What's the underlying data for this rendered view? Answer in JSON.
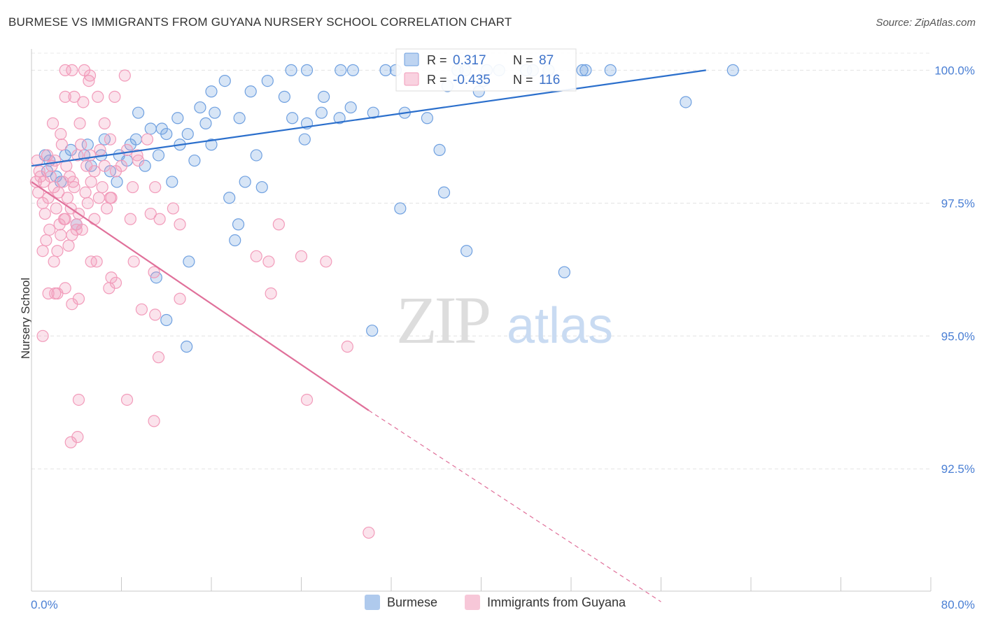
{
  "title": "BURMESE VS IMMIGRANTS FROM GUYANA NURSERY SCHOOL CORRELATION CHART",
  "source": "Source: ZipAtlas.com",
  "watermark": {
    "zip": "ZIP",
    "atlas": "atlas"
  },
  "chart_data": {
    "type": "scatter",
    "title": "BURMESE VS IMMIGRANTS FROM GUYANA NURSERY SCHOOL CORRELATION CHART",
    "xlabel": "",
    "ylabel": "Nursery School",
    "xlim": [
      0,
      80
    ],
    "ylim": [
      90.2,
      100.4
    ],
    "x_tick_labels": [
      "0.0%",
      "80.0%"
    ],
    "y_ticks": [
      92.5,
      95.0,
      97.5,
      100.0
    ],
    "y_tick_labels": [
      "92.5%",
      "95.0%",
      "97.5%",
      "100.0%"
    ],
    "grid": true,
    "legend_position": "top-center",
    "series": [
      {
        "name": "Burmese",
        "color": "#6fa0e0",
        "line_color": "#2b6fcc",
        "R": "0.317",
        "N": "87",
        "trend": {
          "x": [
            0,
            60
          ],
          "y": [
            98.2,
            100.0
          ]
        },
        "points": [
          [
            1.2,
            98.4
          ],
          [
            1.6,
            98.3
          ],
          [
            2.2,
            98.0
          ],
          [
            2.6,
            97.9
          ],
          [
            1.4,
            98.1
          ],
          [
            3.5,
            98.5
          ],
          [
            4.0,
            97.1
          ],
          [
            4.7,
            98.4
          ],
          [
            3.0,
            98.4
          ],
          [
            5.3,
            98.2
          ],
          [
            6.2,
            98.4
          ],
          [
            6.5,
            98.7
          ],
          [
            5.0,
            98.6
          ],
          [
            7.0,
            98.1
          ],
          [
            7.6,
            97.9
          ],
          [
            8.5,
            98.3
          ],
          [
            8.8,
            98.6
          ],
          [
            9.3,
            98.7
          ],
          [
            10.1,
            98.2
          ],
          [
            10.6,
            98.9
          ],
          [
            11.3,
            98.4
          ],
          [
            12.0,
            98.8
          ],
          [
            7.8,
            98.4
          ],
          [
            9.5,
            99.2
          ],
          [
            11.6,
            98.9
          ],
          [
            13.0,
            99.1
          ],
          [
            13.2,
            98.6
          ],
          [
            14.5,
            98.3
          ],
          [
            15.0,
            99.3
          ],
          [
            15.5,
            99.0
          ],
          [
            16.3,
            99.2
          ],
          [
            12.5,
            97.9
          ],
          [
            13.9,
            98.8
          ],
          [
            17.2,
            99.8
          ],
          [
            18.5,
            99.1
          ],
          [
            19.5,
            99.6
          ],
          [
            21.0,
            99.8
          ],
          [
            22.5,
            99.5
          ],
          [
            23.2,
            99.1
          ],
          [
            24.5,
            99.0
          ],
          [
            25.8,
            99.2
          ],
          [
            27.4,
            99.1
          ],
          [
            28.4,
            99.3
          ],
          [
            16.0,
            99.6
          ],
          [
            19.0,
            97.9
          ],
          [
            20.0,
            98.4
          ],
          [
            20.5,
            97.8
          ],
          [
            17.6,
            97.6
          ],
          [
            24.3,
            98.7
          ],
          [
            26.0,
            99.5
          ],
          [
            30.4,
            99.2
          ],
          [
            33.2,
            99.2
          ],
          [
            35.2,
            99.1
          ],
          [
            36.3,
            98.5
          ],
          [
            37.0,
            99.7
          ],
          [
            39.8,
            99.6
          ],
          [
            40.2,
            99.8
          ],
          [
            27.5,
            100.0
          ],
          [
            28.6,
            100.0
          ],
          [
            31.5,
            100.0
          ],
          [
            32.4,
            100.0
          ],
          [
            37.9,
            100.0
          ],
          [
            38.6,
            100.0
          ],
          [
            40.5,
            100.0
          ],
          [
            41.6,
            100.0
          ],
          [
            44.0,
            100.0
          ],
          [
            44.6,
            100.0
          ],
          [
            46.0,
            100.0
          ],
          [
            49.0,
            100.0
          ],
          [
            49.3,
            100.0
          ],
          [
            51.5,
            100.0
          ],
          [
            62.4,
            100.0
          ],
          [
            58.2,
            99.4
          ],
          [
            16.0,
            98.6
          ],
          [
            23.1,
            100.0
          ],
          [
            24.5,
            100.0
          ],
          [
            18.4,
            97.1
          ],
          [
            18.1,
            96.8
          ],
          [
            14.0,
            96.4
          ],
          [
            11.1,
            96.1
          ],
          [
            32.8,
            97.4
          ],
          [
            36.7,
            97.7
          ],
          [
            38.7,
            96.6
          ],
          [
            12.0,
            95.3
          ],
          [
            13.8,
            94.8
          ],
          [
            30.3,
            95.1
          ],
          [
            47.4,
            96.2
          ]
        ]
      },
      {
        "name": "Immigrants from Guyana",
        "color": "#f29bba",
        "line_color": "#e0709a",
        "R": "-0.435",
        "N": "116",
        "trend": {
          "x": [
            0,
            30
          ],
          "y": [
            97.9,
            93.6
          ]
        },
        "trend_dashed": {
          "x": [
            30,
            56
          ],
          "y": [
            93.6,
            90.0
          ]
        },
        "points": [
          [
            0.4,
            97.9
          ],
          [
            0.6,
            97.7
          ],
          [
            0.8,
            98.0
          ],
          [
            1.0,
            97.5
          ],
          [
            1.2,
            97.3
          ],
          [
            1.5,
            97.6
          ],
          [
            1.8,
            98.2
          ],
          [
            2.0,
            97.8
          ],
          [
            2.2,
            97.4
          ],
          [
            2.5,
            97.1
          ],
          [
            2.8,
            97.9
          ],
          [
            3.0,
            97.2
          ],
          [
            3.2,
            97.6
          ],
          [
            3.5,
            97.4
          ],
          [
            3.8,
            97.8
          ],
          [
            4.0,
            97.1
          ],
          [
            4.2,
            97.3
          ],
          [
            4.5,
            97.0
          ],
          [
            4.8,
            97.7
          ],
          [
            5.0,
            97.5
          ],
          [
            5.3,
            97.9
          ],
          [
            5.6,
            97.2
          ],
          [
            6.0,
            97.6
          ],
          [
            6.3,
            97.8
          ],
          [
            6.7,
            97.4
          ],
          [
            7.0,
            97.6
          ],
          [
            0.5,
            98.3
          ],
          [
            0.7,
            98.1
          ],
          [
            1.1,
            97.9
          ],
          [
            1.4,
            98.4
          ],
          [
            1.7,
            98.0
          ],
          [
            2.1,
            98.3
          ],
          [
            2.4,
            97.7
          ],
          [
            2.7,
            98.6
          ],
          [
            3.1,
            98.2
          ],
          [
            3.4,
            98.0
          ],
          [
            3.7,
            97.9
          ],
          [
            4.1,
            98.4
          ],
          [
            4.4,
            98.6
          ],
          [
            4.9,
            98.2
          ],
          [
            5.2,
            98.4
          ],
          [
            5.6,
            98.1
          ],
          [
            6.1,
            98.5
          ],
          [
            6.5,
            98.2
          ],
          [
            7.1,
            97.6
          ],
          [
            7.5,
            98.1
          ],
          [
            8.0,
            98.2
          ],
          [
            8.5,
            98.5
          ],
          [
            9.0,
            97.8
          ],
          [
            9.5,
            98.3
          ],
          [
            1.0,
            96.6
          ],
          [
            1.3,
            96.8
          ],
          [
            1.6,
            97.0
          ],
          [
            2.0,
            96.4
          ],
          [
            2.3,
            96.6
          ],
          [
            2.6,
            96.9
          ],
          [
            2.9,
            97.2
          ],
          [
            3.3,
            96.7
          ],
          [
            3.6,
            96.9
          ],
          [
            4.0,
            97.0
          ],
          [
            1.9,
            99.0
          ],
          [
            2.6,
            98.8
          ],
          [
            3.0,
            99.5
          ],
          [
            3.8,
            99.5
          ],
          [
            4.3,
            99.0
          ],
          [
            4.6,
            99.4
          ],
          [
            5.1,
            99.8
          ],
          [
            5.9,
            99.5
          ],
          [
            6.5,
            99.0
          ],
          [
            7.0,
            98.7
          ],
          [
            3.0,
            100.0
          ],
          [
            3.6,
            100.0
          ],
          [
            4.7,
            100.0
          ],
          [
            5.2,
            99.9
          ],
          [
            7.4,
            99.5
          ],
          [
            8.3,
            99.9
          ],
          [
            9.4,
            98.4
          ],
          [
            10.3,
            98.7
          ],
          [
            11.0,
            97.8
          ],
          [
            12.6,
            97.4
          ],
          [
            5.3,
            96.4
          ],
          [
            5.8,
            96.4
          ],
          [
            7.1,
            96.1
          ],
          [
            7.5,
            96.0
          ],
          [
            8.8,
            97.2
          ],
          [
            9.1,
            96.4
          ],
          [
            10.6,
            97.3
          ],
          [
            10.9,
            96.2
          ],
          [
            11.4,
            97.2
          ],
          [
            13.2,
            97.1
          ],
          [
            1.5,
            95.8
          ],
          [
            2.1,
            95.8
          ],
          [
            2.3,
            95.8
          ],
          [
            3.0,
            95.9
          ],
          [
            3.6,
            95.6
          ],
          [
            4.2,
            95.7
          ],
          [
            6.9,
            95.9
          ],
          [
            9.8,
            95.5
          ],
          [
            11.0,
            95.4
          ],
          [
            13.2,
            95.7
          ],
          [
            1.0,
            95.0
          ],
          [
            11.3,
            94.6
          ],
          [
            21.3,
            95.8
          ],
          [
            21.1,
            96.4
          ],
          [
            26.2,
            96.4
          ],
          [
            28.1,
            94.8
          ],
          [
            4.2,
            93.8
          ],
          [
            8.5,
            93.8
          ],
          [
            10.9,
            93.4
          ],
          [
            3.5,
            93.0
          ],
          [
            4.1,
            93.1
          ],
          [
            24.5,
            93.8
          ],
          [
            30.0,
            91.3
          ],
          [
            20.0,
            96.5
          ],
          [
            22.0,
            97.1
          ],
          [
            24.0,
            96.5
          ]
        ]
      }
    ]
  }
}
